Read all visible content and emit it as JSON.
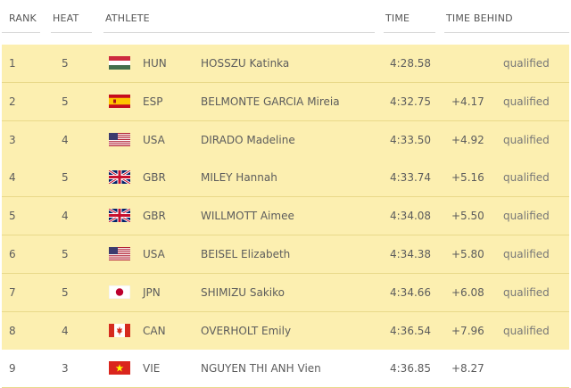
{
  "headers": {
    "rank": "RANK",
    "heat": "HEAT",
    "athlete": "ATHLETE",
    "time": "TIME",
    "time_behind": "TIME BEHIND"
  },
  "rows": [
    {
      "rank": "1",
      "heat": "5",
      "flag": "hungary-flag-icon",
      "noc": "HUN",
      "name": "HOSSZU Katinka",
      "time": "4:28.58",
      "behind": "",
      "status": "qualified"
    },
    {
      "rank": "2",
      "heat": "5",
      "flag": "spain-flag-icon",
      "noc": "ESP",
      "name": "BELMONTE GARCIA Mireia",
      "time": "4:32.75",
      "behind": "+4.17",
      "status": "qualified"
    },
    {
      "rank": "3",
      "heat": "4",
      "flag": "usa-flag-icon",
      "noc": "USA",
      "name": "DIRADO Madeline",
      "time": "4:33.50",
      "behind": "+4.92",
      "status": "qualified"
    },
    {
      "rank": "4",
      "heat": "5",
      "flag": "great-britain-flag-icon",
      "noc": "GBR",
      "name": "MILEY Hannah",
      "time": "4:33.74",
      "behind": "+5.16",
      "status": "qualified"
    },
    {
      "rank": "5",
      "heat": "4",
      "flag": "great-britain-flag-icon",
      "noc": "GBR",
      "name": "WILLMOTT Aimee",
      "time": "4:34.08",
      "behind": "+5.50",
      "status": "qualified"
    },
    {
      "rank": "6",
      "heat": "5",
      "flag": "usa-flag-icon",
      "noc": "USA",
      "name": "BEISEL Elizabeth",
      "time": "4:34.38",
      "behind": "+5.80",
      "status": "qualified"
    },
    {
      "rank": "7",
      "heat": "5",
      "flag": "japan-flag-icon",
      "noc": "JPN",
      "name": "SHIMIZU Sakiko",
      "time": "4:34.66",
      "behind": "+6.08",
      "status": "qualified"
    },
    {
      "rank": "8",
      "heat": "4",
      "flag": "canada-flag-icon",
      "noc": "CAN",
      "name": "OVERHOLT Emily",
      "time": "4:36.54",
      "behind": "+7.96",
      "status": "qualified"
    },
    {
      "rank": "9",
      "heat": "3",
      "flag": "vietnam-flag-icon",
      "noc": "VIE",
      "name": "NGUYEN THI ANH Vien",
      "time": "4:36.85",
      "behind": "+8.27",
      "status": ""
    }
  ],
  "colors": {
    "qualified_row": "#fcefb0",
    "row_divider": "#e9d98a"
  }
}
